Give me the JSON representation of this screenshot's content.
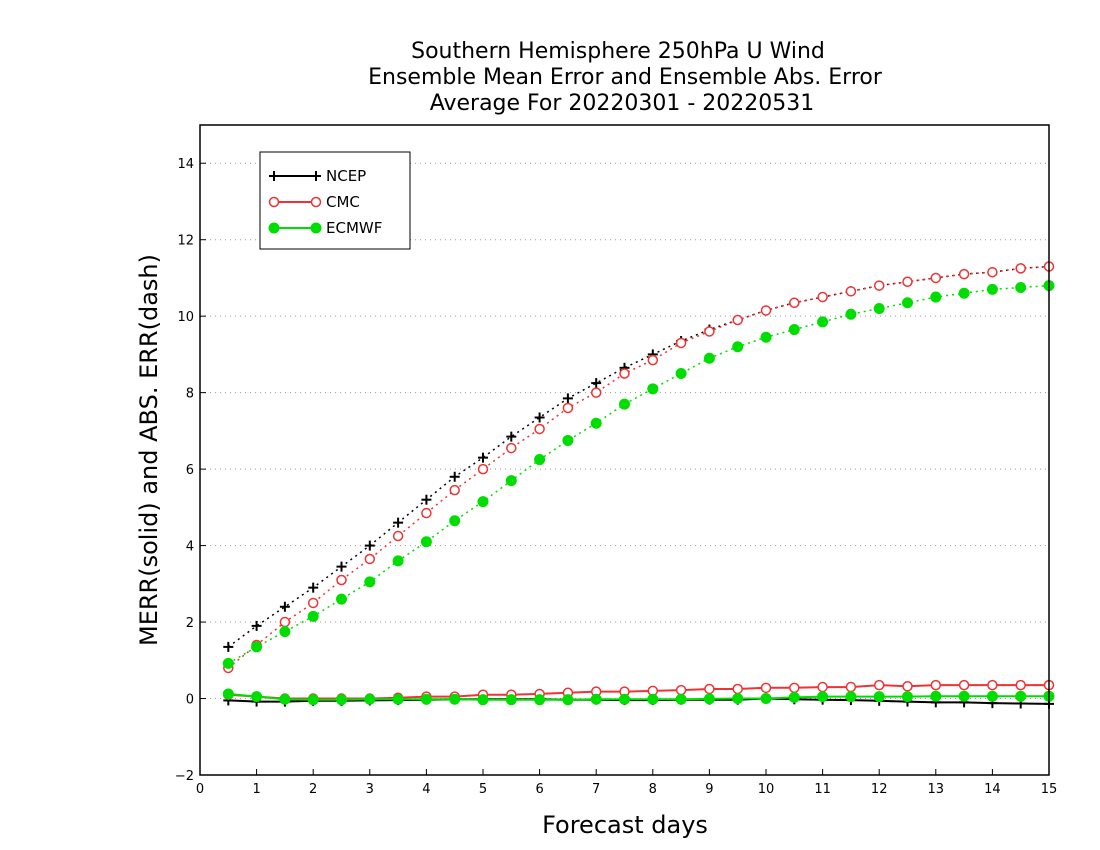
{
  "chart_data": {
    "type": "line",
    "title": [
      "Southern Hemisphere 250hPa U Wind",
      "Ensemble Mean Error and Ensemble Abs. Error",
      "Average For 20220301 - 20220531"
    ],
    "xlabel": "Forecast days",
    "ylabel": "MERR(solid) and ABS. ERR(dash)",
    "xlim": [
      0,
      15
    ],
    "ylim": [
      -2,
      15
    ],
    "x_ticks": [
      0,
      1,
      2,
      3,
      4,
      5,
      6,
      7,
      8,
      9,
      10,
      11,
      12,
      13,
      14,
      15
    ],
    "y_ticks": [
      -2,
      0,
      2,
      4,
      6,
      8,
      10,
      12,
      14
    ],
    "grid": "horizontal dotted",
    "legend_position": "top-left",
    "x": [
      0.5,
      1,
      1.5,
      2,
      2.5,
      3,
      3.5,
      4,
      4.5,
      5,
      5.5,
      6,
      6.5,
      7,
      7.5,
      8,
      8.5,
      9,
      9.5,
      10,
      10.5,
      11,
      11.5,
      12,
      12.5,
      13,
      13.5,
      14,
      14.5,
      15
    ],
    "series": [
      {
        "name": "NCEP",
        "color": "#000000",
        "marker": "plus",
        "abs_err": [
          1.35,
          1.9,
          2.4,
          2.9,
          3.45,
          4.0,
          4.6,
          5.2,
          5.8,
          6.3,
          6.85,
          7.35,
          7.85,
          8.25,
          8.65,
          9.0,
          9.35,
          9.65,
          9.9,
          10.15,
          10.35,
          10.5,
          10.65,
          10.8,
          10.9,
          11.0,
          11.1,
          11.15,
          11.25,
          11.3
        ],
        "mean_err": [
          -0.05,
          -0.08,
          -0.08,
          -0.06,
          -0.06,
          -0.05,
          -0.04,
          -0.03,
          -0.02,
          -0.02,
          -0.02,
          -0.02,
          -0.03,
          -0.03,
          -0.04,
          -0.04,
          -0.03,
          -0.03,
          -0.03,
          0.0,
          -0.02,
          -0.03,
          -0.04,
          -0.06,
          -0.08,
          -0.1,
          -0.1,
          -0.12,
          -0.13,
          -0.14
        ]
      },
      {
        "name": "CMC",
        "color": "#ee3333",
        "marker": "open-circle",
        "abs_err": [
          0.8,
          1.4,
          2.0,
          2.5,
          3.1,
          3.65,
          4.25,
          4.85,
          5.45,
          6.0,
          6.55,
          7.05,
          7.6,
          8.0,
          8.5,
          8.85,
          9.3,
          9.6,
          9.9,
          10.15,
          10.35,
          10.5,
          10.65,
          10.8,
          10.9,
          11.0,
          11.1,
          11.15,
          11.25,
          11.3
        ],
        "mean_err": [
          0.1,
          0.05,
          0.0,
          0.0,
          0.0,
          0.0,
          0.02,
          0.05,
          0.05,
          0.1,
          0.1,
          0.12,
          0.15,
          0.18,
          0.18,
          0.2,
          0.22,
          0.25,
          0.25,
          0.28,
          0.28,
          0.3,
          0.3,
          0.35,
          0.32,
          0.35,
          0.35,
          0.35,
          0.35,
          0.35
        ]
      },
      {
        "name": "ECMWF",
        "color": "#00dd00",
        "marker": "filled-circle",
        "abs_err": [
          0.92,
          1.35,
          1.75,
          2.15,
          2.6,
          3.05,
          3.6,
          4.1,
          4.65,
          5.15,
          5.7,
          6.25,
          6.75,
          7.2,
          7.7,
          8.1,
          8.5,
          8.9,
          9.2,
          9.45,
          9.65,
          9.85,
          10.05,
          10.2,
          10.35,
          10.5,
          10.6,
          10.7,
          10.75,
          10.8
        ],
        "mean_err": [
          0.12,
          0.05,
          -0.02,
          -0.03,
          -0.03,
          -0.02,
          -0.02,
          -0.02,
          -0.02,
          -0.03,
          -0.03,
          -0.03,
          -0.03,
          -0.02,
          -0.02,
          -0.02,
          -0.02,
          -0.01,
          0.0,
          0.0,
          0.03,
          0.05,
          0.05,
          0.05,
          0.05,
          0.06,
          0.06,
          0.06,
          0.06,
          0.06
        ]
      }
    ]
  }
}
